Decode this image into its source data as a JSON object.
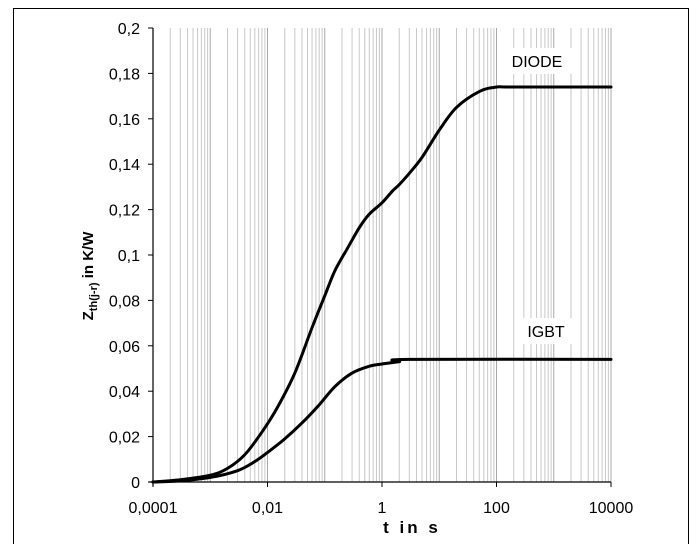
{
  "chart_data": {
    "type": "line",
    "xscale": "log",
    "xlim": [
      0.0001,
      10000
    ],
    "ylim": [
      0,
      0.2
    ],
    "grid": "vertical minor and major",
    "legend": "inline labels",
    "xlabel": "t in s",
    "ylabel_main": "Z",
    "ylabel_sub": "th(j-r)",
    "ylabel_rest": " in K/W",
    "x_ticks": [
      {
        "value": 0.0001,
        "label": "0,0001"
      },
      {
        "value": 0.01,
        "label": "0,01"
      },
      {
        "value": 1,
        "label": "1"
      },
      {
        "value": 100,
        "label": "100"
      },
      {
        "value": 10000,
        "label": "10000"
      }
    ],
    "y_ticks": [
      {
        "value": 0,
        "label": "0"
      },
      {
        "value": 0.02,
        "label": "0,02"
      },
      {
        "value": 0.04,
        "label": "0,04"
      },
      {
        "value": 0.06,
        "label": "0,06"
      },
      {
        "value": 0.08,
        "label": "0,08"
      },
      {
        "value": 0.1,
        "label": "0,1"
      },
      {
        "value": 0.12,
        "label": "0,12"
      },
      {
        "value": 0.14,
        "label": "0,14"
      },
      {
        "value": 0.16,
        "label": "0,16"
      },
      {
        "value": 0.18,
        "label": "0,18"
      },
      {
        "value": 0.2,
        "label": "0,2"
      }
    ],
    "series": [
      {
        "name": "DIODE",
        "x": [
          0.0001,
          0.0003,
          0.001,
          0.002,
          0.004,
          0.008,
          0.015,
          0.03,
          0.06,
          0.1,
          0.15,
          0.25,
          0.4,
          0.6,
          1,
          1.5,
          2,
          3,
          5,
          10,
          20,
          50,
          100,
          200,
          10000
        ],
        "y": [
          0,
          0.001,
          0.003,
          0.006,
          0.012,
          0.022,
          0.033,
          0.048,
          0.068,
          0.082,
          0.093,
          0.103,
          0.112,
          0.118,
          0.123,
          0.128,
          0.131,
          0.136,
          0.143,
          0.155,
          0.165,
          0.172,
          0.174,
          0.174,
          0.174
        ]
      },
      {
        "name": "IGBT",
        "x": [
          0.0001,
          0.0003,
          0.001,
          0.003,
          0.006,
          0.01,
          0.02,
          0.04,
          0.08,
          0.15,
          0.3,
          0.6,
          1,
          2,
          3,
          10000
        ],
        "y": [
          0,
          0.0005,
          0.002,
          0.005,
          0.009,
          0.013,
          0.019,
          0.026,
          0.034,
          0.042,
          0.048,
          0.051,
          0.052,
          0.053,
          0.054,
          0.054
        ]
      }
    ],
    "series_labels": [
      {
        "text": "DIODE"
      },
      {
        "text": "IGBT"
      }
    ]
  }
}
